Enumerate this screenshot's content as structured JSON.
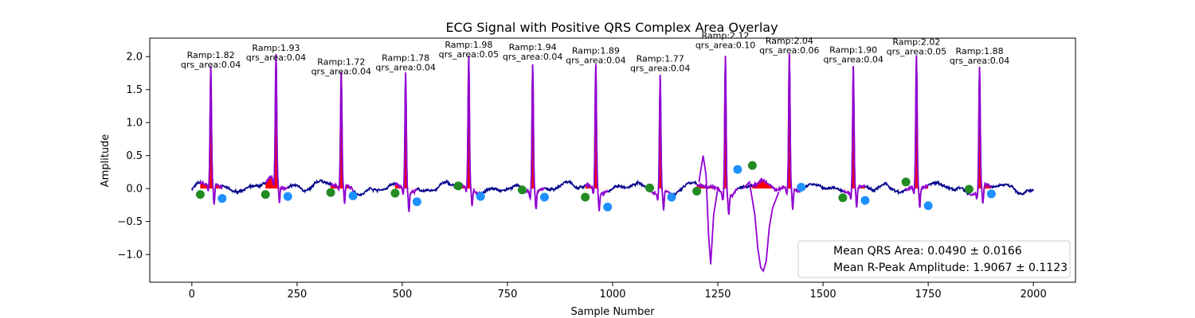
{
  "chart_data": {
    "type": "line",
    "title": "ECG Signal with Positive QRS Complex Area Overlay",
    "xlabel": "Sample Number",
    "ylabel": "Amplitude",
    "xlim": [
      -100,
      2100
    ],
    "ylim": [
      -1.42,
      2.28
    ],
    "x_ticks": [
      0,
      250,
      500,
      750,
      1000,
      1250,
      1500,
      1750,
      2000
    ],
    "y_ticks": [
      -1.0,
      -0.5,
      0.0,
      0.5,
      1.0,
      1.5,
      2.0
    ],
    "y_tick_labels": [
      "−1.0",
      "−0.5",
      "0.0",
      "0.5",
      "1.0",
      "1.5",
      "2.0"
    ],
    "grid": false,
    "colors": {
      "signal": "#00008b",
      "qrs_segment": "#9400d3",
      "qrs_area": "#ff0000",
      "onset_marker": "#228b22",
      "offset_marker": "#1e90ff"
    },
    "beats": [
      {
        "peak_x": 45,
        "ramp": "Ramp:1.82",
        "qrs_area": "qrs_area:0.04",
        "amplitude": 1.82,
        "onset": [
          20,
          -0.09
        ],
        "offset": [
          72,
          -0.15
        ]
      },
      {
        "peak_x": 200,
        "ramp": "Ramp:1.93",
        "qrs_area": "qrs_area:0.04",
        "amplitude": 1.93,
        "onset": [
          175,
          -0.09
        ],
        "offset": [
          228,
          -0.12
        ]
      },
      {
        "peak_x": 355,
        "ramp": "Ramp:1.72",
        "qrs_area": "qrs_area:0.04",
        "amplitude": 1.72,
        "onset": [
          330,
          -0.06
        ],
        "offset": [
          383,
          -0.11
        ]
      },
      {
        "peak_x": 508,
        "ramp": "Ramp:1.78",
        "qrs_area": "qrs_area:0.04",
        "amplitude": 1.78,
        "onset": [
          483,
          -0.07
        ],
        "offset": [
          535,
          -0.2
        ]
      },
      {
        "peak_x": 658,
        "ramp": "Ramp:1.98",
        "qrs_area": "qrs_area:0.05",
        "amplitude": 1.98,
        "onset": [
          633,
          0.04
        ],
        "offset": [
          686,
          -0.12
        ]
      },
      {
        "peak_x": 810,
        "ramp": "Ramp:1.94",
        "qrs_area": "qrs_area:0.04",
        "amplitude": 1.94,
        "onset": [
          785,
          -0.02
        ],
        "offset": [
          838,
          -0.13
        ]
      },
      {
        "peak_x": 960,
        "ramp": "Ramp:1.89",
        "qrs_area": "qrs_area:0.04",
        "amplitude": 1.89,
        "onset": [
          935,
          -0.13
        ],
        "offset": [
          988,
          -0.28
        ]
      },
      {
        "peak_x": 1113,
        "ramp": "Ramp:1.77",
        "qrs_area": "qrs_area:0.04",
        "amplitude": 1.77,
        "onset": [
          1088,
          0.01
        ],
        "offset": [
          1140,
          -0.13
        ]
      },
      {
        "peak_x": 1268,
        "ramp": "Ramp:2.12",
        "qrs_area": "qrs_area:0.10",
        "amplitude": 2.12,
        "onset": [
          1200,
          -0.04
        ],
        "offset": [
          1297,
          0.29
        ]
      },
      {
        "peak_x": 1420,
        "ramp": "Ramp:2.04",
        "qrs_area": "qrs_area:0.06",
        "amplitude": 2.04,
        "onset": [
          1332,
          0.35
        ],
        "offset": [
          1448,
          0.02
        ]
      },
      {
        "peak_x": 1572,
        "ramp": "Ramp:1.90",
        "qrs_area": "qrs_area:0.04",
        "amplitude": 1.9,
        "onset": [
          1547,
          -0.14
        ],
        "offset": [
          1600,
          -0.18
        ]
      },
      {
        "peak_x": 1722,
        "ramp": "Ramp:2.02",
        "qrs_area": "qrs_area:0.05",
        "amplitude": 2.02,
        "onset": [
          1697,
          0.1
        ],
        "offset": [
          1750,
          -0.26
        ]
      },
      {
        "peak_x": 1872,
        "ramp": "Ramp:1.88",
        "qrs_area": "qrs_area:0.04",
        "amplitude": 1.88,
        "onset": [
          1847,
          -0.01
        ],
        "offset": [
          1900,
          -0.08
        ]
      }
    ],
    "artifacts": [
      {
        "x": [
          1205,
          1215,
          1222,
          1228,
          1233,
          1240,
          1250
        ],
        "y": [
          0.1,
          0.5,
          0.2,
          -0.7,
          -1.15,
          -0.4,
          0.0
        ]
      },
      {
        "x": [
          1310,
          1325,
          1338,
          1345,
          1352,
          1358,
          1365,
          1372,
          1380,
          1395
        ],
        "y": [
          0.0,
          0.1,
          -0.4,
          -0.9,
          -1.2,
          -1.25,
          -1.1,
          -0.6,
          -0.3,
          -0.05
        ]
      }
    ],
    "legend": {
      "position": "lower-right",
      "entries": [
        "Mean QRS Area: 0.0490 ± 0.0166",
        "Mean R-Peak Amplitude: 1.9067 ± 0.1123"
      ]
    }
  }
}
